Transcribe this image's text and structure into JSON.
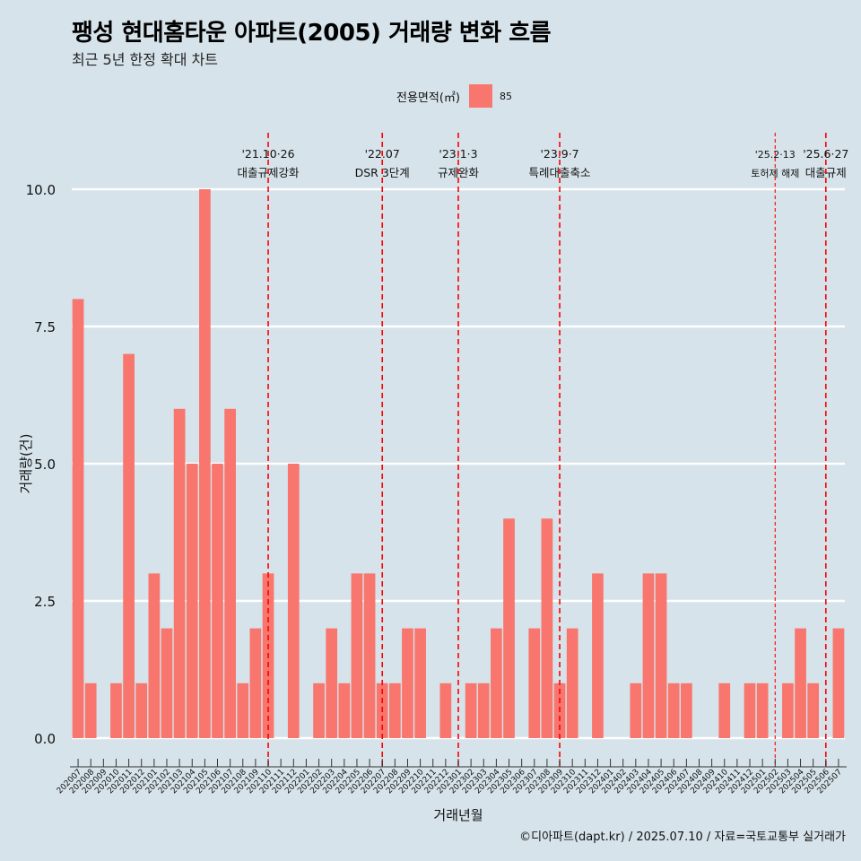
{
  "title": "팽성 현대홈타운 아파트(2005) 거래량 변화 흐름",
  "subtitle": "최근 5년 한정 확대 차트",
  "caption": "©디아파트(dapt.kr) / 2025.07.10 / 자료=국토교통부 실거래가",
  "colors": {
    "background": "#d6e3ea",
    "bar": "#f8766d",
    "event_line": "#ff0000",
    "grid": "#ffffff"
  },
  "chart_data": {
    "type": "bar",
    "xlabel": "거래년월",
    "ylabel": "거래량(건)",
    "ylim": [
      0,
      10
    ],
    "y_ticks": [
      "0.0",
      "2.5",
      "5.0",
      "7.5",
      "10.0"
    ],
    "legend": {
      "title": "전용면적(㎡)",
      "placement": "top"
    },
    "categories": [
      "202007",
      "202008",
      "202009",
      "202010",
      "202011",
      "202012",
      "202101",
      "202102",
      "202103",
      "202104",
      "202105",
      "202106",
      "202107",
      "202108",
      "202109",
      "202110",
      "202111",
      "202112",
      "202201",
      "202202",
      "202203",
      "202204",
      "202205",
      "202206",
      "202207",
      "202208",
      "202209",
      "202210",
      "202211",
      "202212",
      "202301",
      "202302",
      "202303",
      "202304",
      "202305",
      "202306",
      "202307",
      "202308",
      "202309",
      "202310",
      "202311",
      "202312",
      "202401",
      "202402",
      "202403",
      "202404",
      "202405",
      "202406",
      "202407",
      "202408",
      "202409",
      "202410",
      "202411",
      "202412",
      "202501",
      "202502",
      "202503",
      "202504",
      "202505",
      "202506",
      "202507"
    ],
    "series": [
      {
        "name": "85",
        "values": [
          8,
          1,
          0,
          1,
          7,
          1,
          3,
          2,
          6,
          5,
          10,
          5,
          6,
          1,
          2,
          3,
          0,
          5,
          0,
          1,
          2,
          1,
          3,
          3,
          1,
          1,
          2,
          2,
          0,
          1,
          0,
          1,
          1,
          2,
          4,
          0,
          2,
          4,
          1,
          2,
          0,
          3,
          0,
          0,
          1,
          3,
          3,
          1,
          1,
          0,
          0,
          1,
          0,
          1,
          1,
          0,
          1,
          2,
          1,
          0,
          2
        ]
      }
    ],
    "events": [
      {
        "x": 15.5,
        "date": "'21.10·26",
        "label": "대출규제강화",
        "style": "major"
      },
      {
        "x": 24.5,
        "date": "'22.07",
        "label": "DSR 3단계",
        "style": "major"
      },
      {
        "x": 30.5,
        "date": "'23.1·3",
        "label": "규제완화",
        "style": "major"
      },
      {
        "x": 38.5,
        "date": "'23.9·7",
        "label": "특례대출축소",
        "style": "major"
      },
      {
        "x": 55.5,
        "date": "'25.2·13",
        "label": "토허제 해제",
        "style": "minor"
      },
      {
        "x": 59.5,
        "date": "'25.6·27",
        "label": "대출규제",
        "style": "major"
      }
    ]
  }
}
